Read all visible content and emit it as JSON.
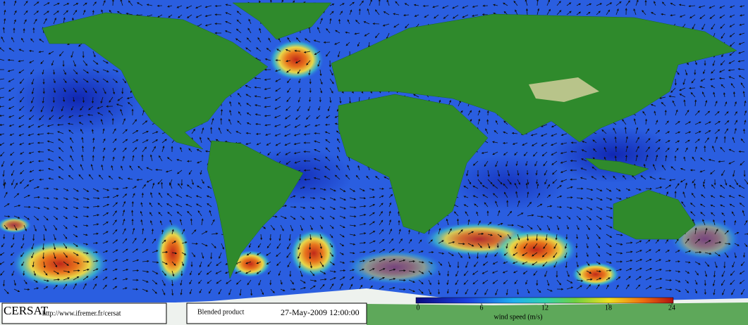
{
  "logo": "CERSAT",
  "url": "http://www.ifremer.fr/cersat",
  "product": "Blended product",
  "date": "27-May-2009 12:00:00",
  "colorbar": {
    "label": "wind speed (m/s)",
    "range": [
      0,
      24
    ],
    "ticks": [
      0,
      6,
      12,
      18,
      24
    ]
  }
}
